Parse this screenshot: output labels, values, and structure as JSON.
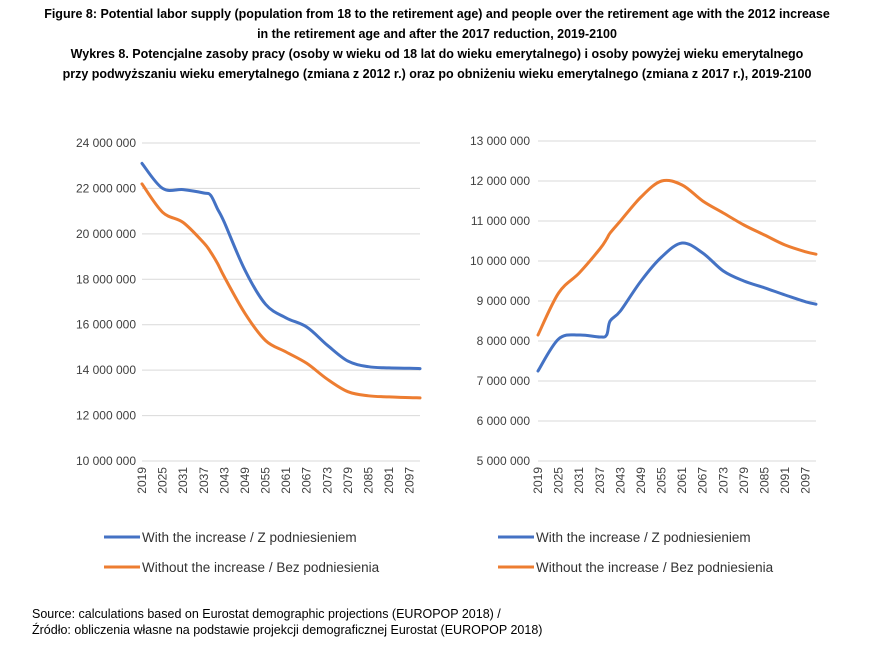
{
  "figure": {
    "title_lines": [
      "Figure 8: Potential labor supply (population from 18 to the retirement age) and people over the retirement age with the 2012 increase",
      "in the retirement age and after the 2017 reduction, 2019-2100",
      "Wykres 8. Potencjalne zasoby pracy (osoby w wieku od 18 lat do wieku emerytalnego) i osoby powyżej wieku emerytalnego",
      "przy podwyższaniu wieku emerytalnego (zmiana z 2012 r.) oraz po obniżeniu wieku emerytalnego (zmiana z 2017 r.), 2019-2100"
    ],
    "source_lines": [
      "Source: calculations based on Eurostat demographic projections (EUROPOP 2018) /",
      "Źródło: obliczenia własne na podstawie projekcji demograficznej Eurostat (EUROPOP 2018)"
    ]
  },
  "chart_data": [
    {
      "type": "line",
      "x": [
        2019,
        2025,
        2031,
        2037,
        2039,
        2041,
        2043,
        2049,
        2055,
        2061,
        2067,
        2073,
        2079,
        2085,
        2091,
        2097,
        2100
      ],
      "x_tick_labels": [
        "2019",
        "2025",
        "2031",
        "2037",
        "2043",
        "2049",
        "2055",
        "2061",
        "2067",
        "2073",
        "2079",
        "2085",
        "2091",
        "2097"
      ],
      "ylim": [
        10000000,
        24000000
      ],
      "y_tick_labels": [
        "24 000 000",
        "22 000 000",
        "20 000 000",
        "18 000 000",
        "16 000 000",
        "14 000 000",
        "12 000 000",
        "10 000 000"
      ],
      "y_tick_values": [
        24000000,
        22000000,
        20000000,
        18000000,
        16000000,
        14000000,
        12000000,
        10000000
      ],
      "grid": true,
      "legend": "bottom",
      "series": [
        {
          "name": "With the increase / Z podniesieniem",
          "color": "#4472C4",
          "values": [
            23100000,
            22000000,
            21950000,
            21800000,
            21700000,
            21100000,
            20500000,
            18400000,
            16900000,
            16300000,
            15900000,
            15100000,
            14400000,
            14150000,
            14100000,
            14080000,
            14070000
          ]
        },
        {
          "name": "Without the increase / Bez podniesienia",
          "color": "#ED7D31",
          "values": [
            22200000,
            20950000,
            20500000,
            19600000,
            19200000,
            18700000,
            18100000,
            16500000,
            15300000,
            14800000,
            14300000,
            13600000,
            13050000,
            12870000,
            12820000,
            12790000,
            12780000
          ]
        }
      ]
    },
    {
      "type": "line",
      "x": [
        2019,
        2025,
        2031,
        2037,
        2039,
        2040,
        2043,
        2049,
        2055,
        2061,
        2067,
        2073,
        2079,
        2085,
        2091,
        2097,
        2100
      ],
      "x_tick_labels": [
        "2019",
        "2025",
        "2031",
        "2037",
        "2043",
        "2049",
        "2055",
        "2061",
        "2067",
        "2073",
        "2079",
        "2085",
        "2091",
        "2097"
      ],
      "ylim": [
        5000000,
        13000000
      ],
      "y_tick_labels": [
        "13 000 000",
        "12 000 000",
        "11 000 000",
        "10 000 000",
        "9 000 000",
        "8 000 000",
        "7 000 000",
        "6 000 000",
        "5 000 000"
      ],
      "y_tick_values": [
        13000000,
        12000000,
        11000000,
        10000000,
        9000000,
        8000000,
        7000000,
        6000000,
        5000000
      ],
      "grid": true,
      "legend": "bottom",
      "series": [
        {
          "name": "With the increase / Z podniesieniem",
          "color": "#4472C4",
          "values": [
            7250000,
            8050000,
            8150000,
            8100000,
            8150000,
            8500000,
            8750000,
            9500000,
            10100000,
            10450000,
            10200000,
            9750000,
            9500000,
            9330000,
            9150000,
            8980000,
            8920000
          ]
        },
        {
          "name": "Without the increase / Bez podniesienia",
          "color": "#ED7D31",
          "values": [
            8150000,
            9200000,
            9700000,
            10300000,
            10550000,
            10700000,
            11000000,
            11600000,
            12000000,
            11900000,
            11500000,
            11200000,
            10900000,
            10650000,
            10400000,
            10230000,
            10170000
          ]
        }
      ]
    }
  ]
}
